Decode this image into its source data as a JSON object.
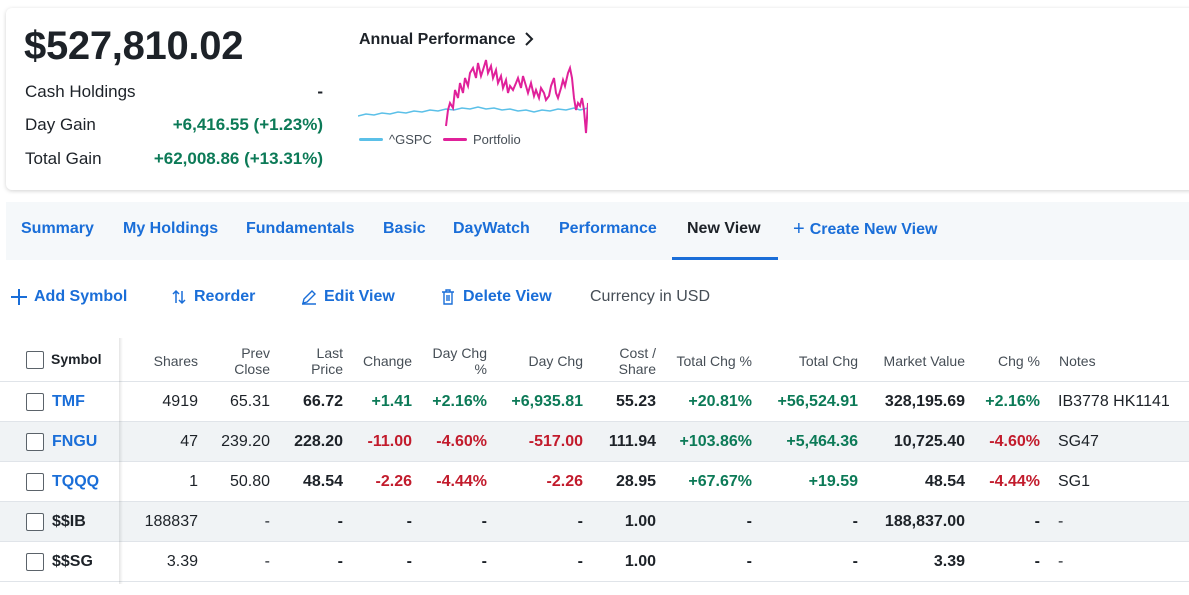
{
  "summary": {
    "total_value": "$527,810.02",
    "stats": [
      {
        "label": "Cash Holdings",
        "value": "-",
        "tone": "plain"
      },
      {
        "label": "Day Gain",
        "value": "+6,416.55 (+1.23%)",
        "tone": "green"
      },
      {
        "label": "Total Gain",
        "value": "+62,008.86 (+13.31%)",
        "tone": "green"
      }
    ]
  },
  "performance": {
    "title": "Annual Performance",
    "legend": [
      {
        "name": "^GSPC",
        "color": "#5bc0e8"
      },
      {
        "name": "Portfolio",
        "color": "#e0219a"
      }
    ]
  },
  "tabs": [
    {
      "label": "Summary",
      "active": false
    },
    {
      "label": "My Holdings",
      "active": false
    },
    {
      "label": "Fundamentals",
      "active": false
    },
    {
      "label": "Basic",
      "active": false
    },
    {
      "label": "DayWatch",
      "active": false
    },
    {
      "label": "Performance",
      "active": false
    },
    {
      "label": "New View",
      "active": true
    },
    {
      "label": "Create New View",
      "active": false
    }
  ],
  "toolbar": {
    "add_symbol": "Add Symbol",
    "reorder": "Reorder",
    "edit_view": "Edit View",
    "delete_view": "Delete View",
    "currency": "Currency in USD"
  },
  "table": {
    "columns": {
      "symbol": "Symbol",
      "shares": "Shares",
      "prev_close_1": "Prev",
      "prev_close_2": "Close",
      "last_price_1": "Last",
      "last_price_2": "Price",
      "change": "Change",
      "day_chg_pct_1": "Day Chg",
      "day_chg_pct_2": "%",
      "day_chg": "Day Chg",
      "cost_share_1": "Cost /",
      "cost_share_2": "Share",
      "total_chg_pct": "Total Chg %",
      "total_chg": "Total Chg",
      "market_value": "Market Value",
      "chg_pct": "Chg %",
      "notes": "Notes"
    },
    "rows": [
      {
        "symbol": "TMF",
        "shares": "4919",
        "prev_close": "65.31",
        "last_price": "66.72",
        "change": "+1.41",
        "day_chg_pct": "+2.16%",
        "day_chg": "+6,935.81",
        "cost_share": "55.23",
        "total_chg_pct": "+20.81%",
        "total_chg": "+56,524.91",
        "market_value": "328,195.69",
        "chg_pct": "+2.16%",
        "notes": "IB3778 HK1141"
      },
      {
        "symbol": "FNGU",
        "shares": "47",
        "prev_close": "239.20",
        "last_price": "228.20",
        "change": "-11.00",
        "day_chg_pct": "-4.60%",
        "day_chg": "-517.00",
        "cost_share": "111.94",
        "total_chg_pct": "+103.86%",
        "total_chg": "+5,464.36",
        "market_value": "10,725.40",
        "chg_pct": "-4.60%",
        "notes": "SG47"
      },
      {
        "symbol": "TQQQ",
        "shares": "1",
        "prev_close": "50.80",
        "last_price": "48.54",
        "change": "-2.26",
        "day_chg_pct": "-4.44%",
        "day_chg": "-2.26",
        "cost_share": "28.95",
        "total_chg_pct": "+67.67%",
        "total_chg": "+19.59",
        "market_value": "48.54",
        "chg_pct": "-4.44%",
        "notes": "SG1"
      },
      {
        "symbol": "$$IB",
        "shares": "188837",
        "prev_close": "-",
        "last_price": "-",
        "change": "-",
        "day_chg_pct": "-",
        "day_chg": "-",
        "cost_share": "1.00",
        "total_chg_pct": "-",
        "total_chg": "-",
        "market_value": "188,837.00",
        "chg_pct": "-",
        "notes": "-"
      },
      {
        "symbol": "$$SG",
        "shares": "3.39",
        "prev_close": "-",
        "last_price": "-",
        "change": "-",
        "day_chg_pct": "-",
        "day_chg": "-",
        "cost_share": "1.00",
        "total_chg_pct": "-",
        "total_chg": "-",
        "market_value": "3.39",
        "chg_pct": "-",
        "notes": "-"
      }
    ]
  }
}
